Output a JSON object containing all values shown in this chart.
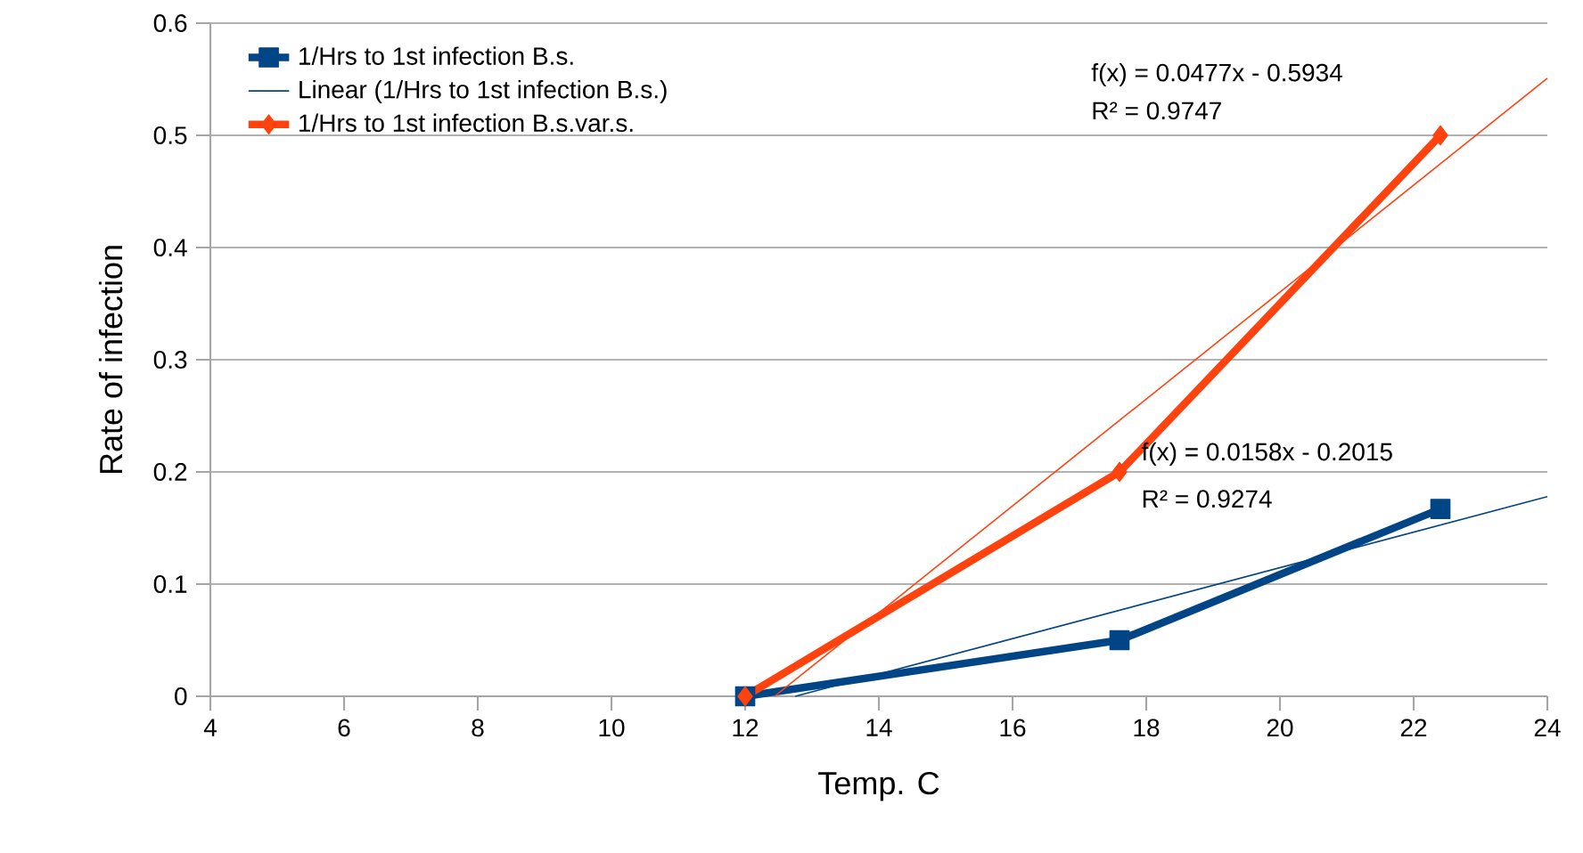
{
  "chart_data": {
    "type": "line",
    "xlabel": "Temp. C",
    "ylabel": "Rate of infection",
    "xlim": [
      4,
      24
    ],
    "xticks": [
      4,
      6,
      8,
      10,
      12,
      14,
      16,
      18,
      20,
      22,
      24
    ],
    "ylim": [
      0,
      0.6
    ],
    "yticks": [
      0,
      0.1,
      0.2,
      0.3,
      0.4,
      0.5,
      0.6
    ],
    "grid": "y",
    "legend": "top left",
    "series": [
      {
        "name": "1/Hrs to 1st infection B.s.",
        "color": "#004586",
        "marker": "square",
        "x": [
          12,
          17.6,
          22.4
        ],
        "values": [
          0,
          0.05,
          0.167
        ]
      },
      {
        "name": "Linear (1/Hrs to 1st infection B.s.)",
        "color": "#004586",
        "marker": "none",
        "x": [
          12.75,
          24
        ],
        "values": [
          0,
          0.178
        ]
      },
      {
        "name": "1/Hrs to 1st infection B.s.var.s.",
        "color": "#ff420e",
        "marker": "diamond",
        "x": [
          12,
          17.6,
          22.4
        ],
        "values": [
          0,
          0.2,
          0.5
        ]
      },
      {
        "color": "#ff420e",
        "marker": "none",
        "x": [
          12.44,
          24
        ],
        "values": [
          0,
          0.551
        ]
      }
    ],
    "annotations": [
      "f(x) = 0.0477x - 0.5934",
      "R² = 0.9747",
      "f(x) = 0.0158x - 0.2015",
      "R² = 0.9274"
    ]
  }
}
